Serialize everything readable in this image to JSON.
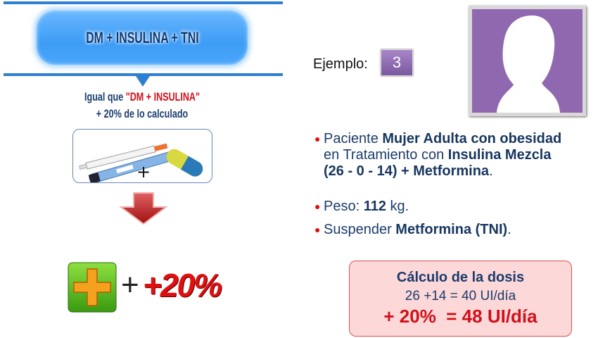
{
  "left": {
    "title": "DM + INSULINA + TNI",
    "line1_prefix": "Igual que ",
    "line1_highlight": "\"DM + INSULINA\"",
    "line2": "+ 20% de lo calculado",
    "image_plus": "+",
    "increase_label": "+20%",
    "increase_plus": "+"
  },
  "example": {
    "label": "Ejemplo:",
    "number": "3"
  },
  "bullets": [
    {
      "parts": [
        [
          "Paciente ",
          false
        ],
        [
          "Mujer Adulta con obesidad",
          true
        ]
      ],
      "line2": [
        [
          "en Tratamiento con ",
          false
        ],
        [
          "Insulina Mezcla",
          true
        ]
      ],
      "line3": [
        [
          "(26 - 0 - 14) + Metformina",
          true
        ],
        [
          ".",
          false
        ]
      ]
    },
    {
      "a": "Peso: ",
      "b": "112",
      "c": " kg."
    },
    {
      "a": "Suspender ",
      "b": "Metformina (TNI)",
      "c": "."
    }
  ],
  "calc": {
    "title": "Cálculo de la dosis",
    "line1": "26 +14 = 40 UI/día",
    "line2": "+ 20%  = 48 UI/día"
  },
  "colors": {
    "blue": "#2d7fd2",
    "red": "#d0101a",
    "purple": "#9068b0",
    "navy": "#1a3c6c",
    "pink": "#fdd8d8"
  }
}
